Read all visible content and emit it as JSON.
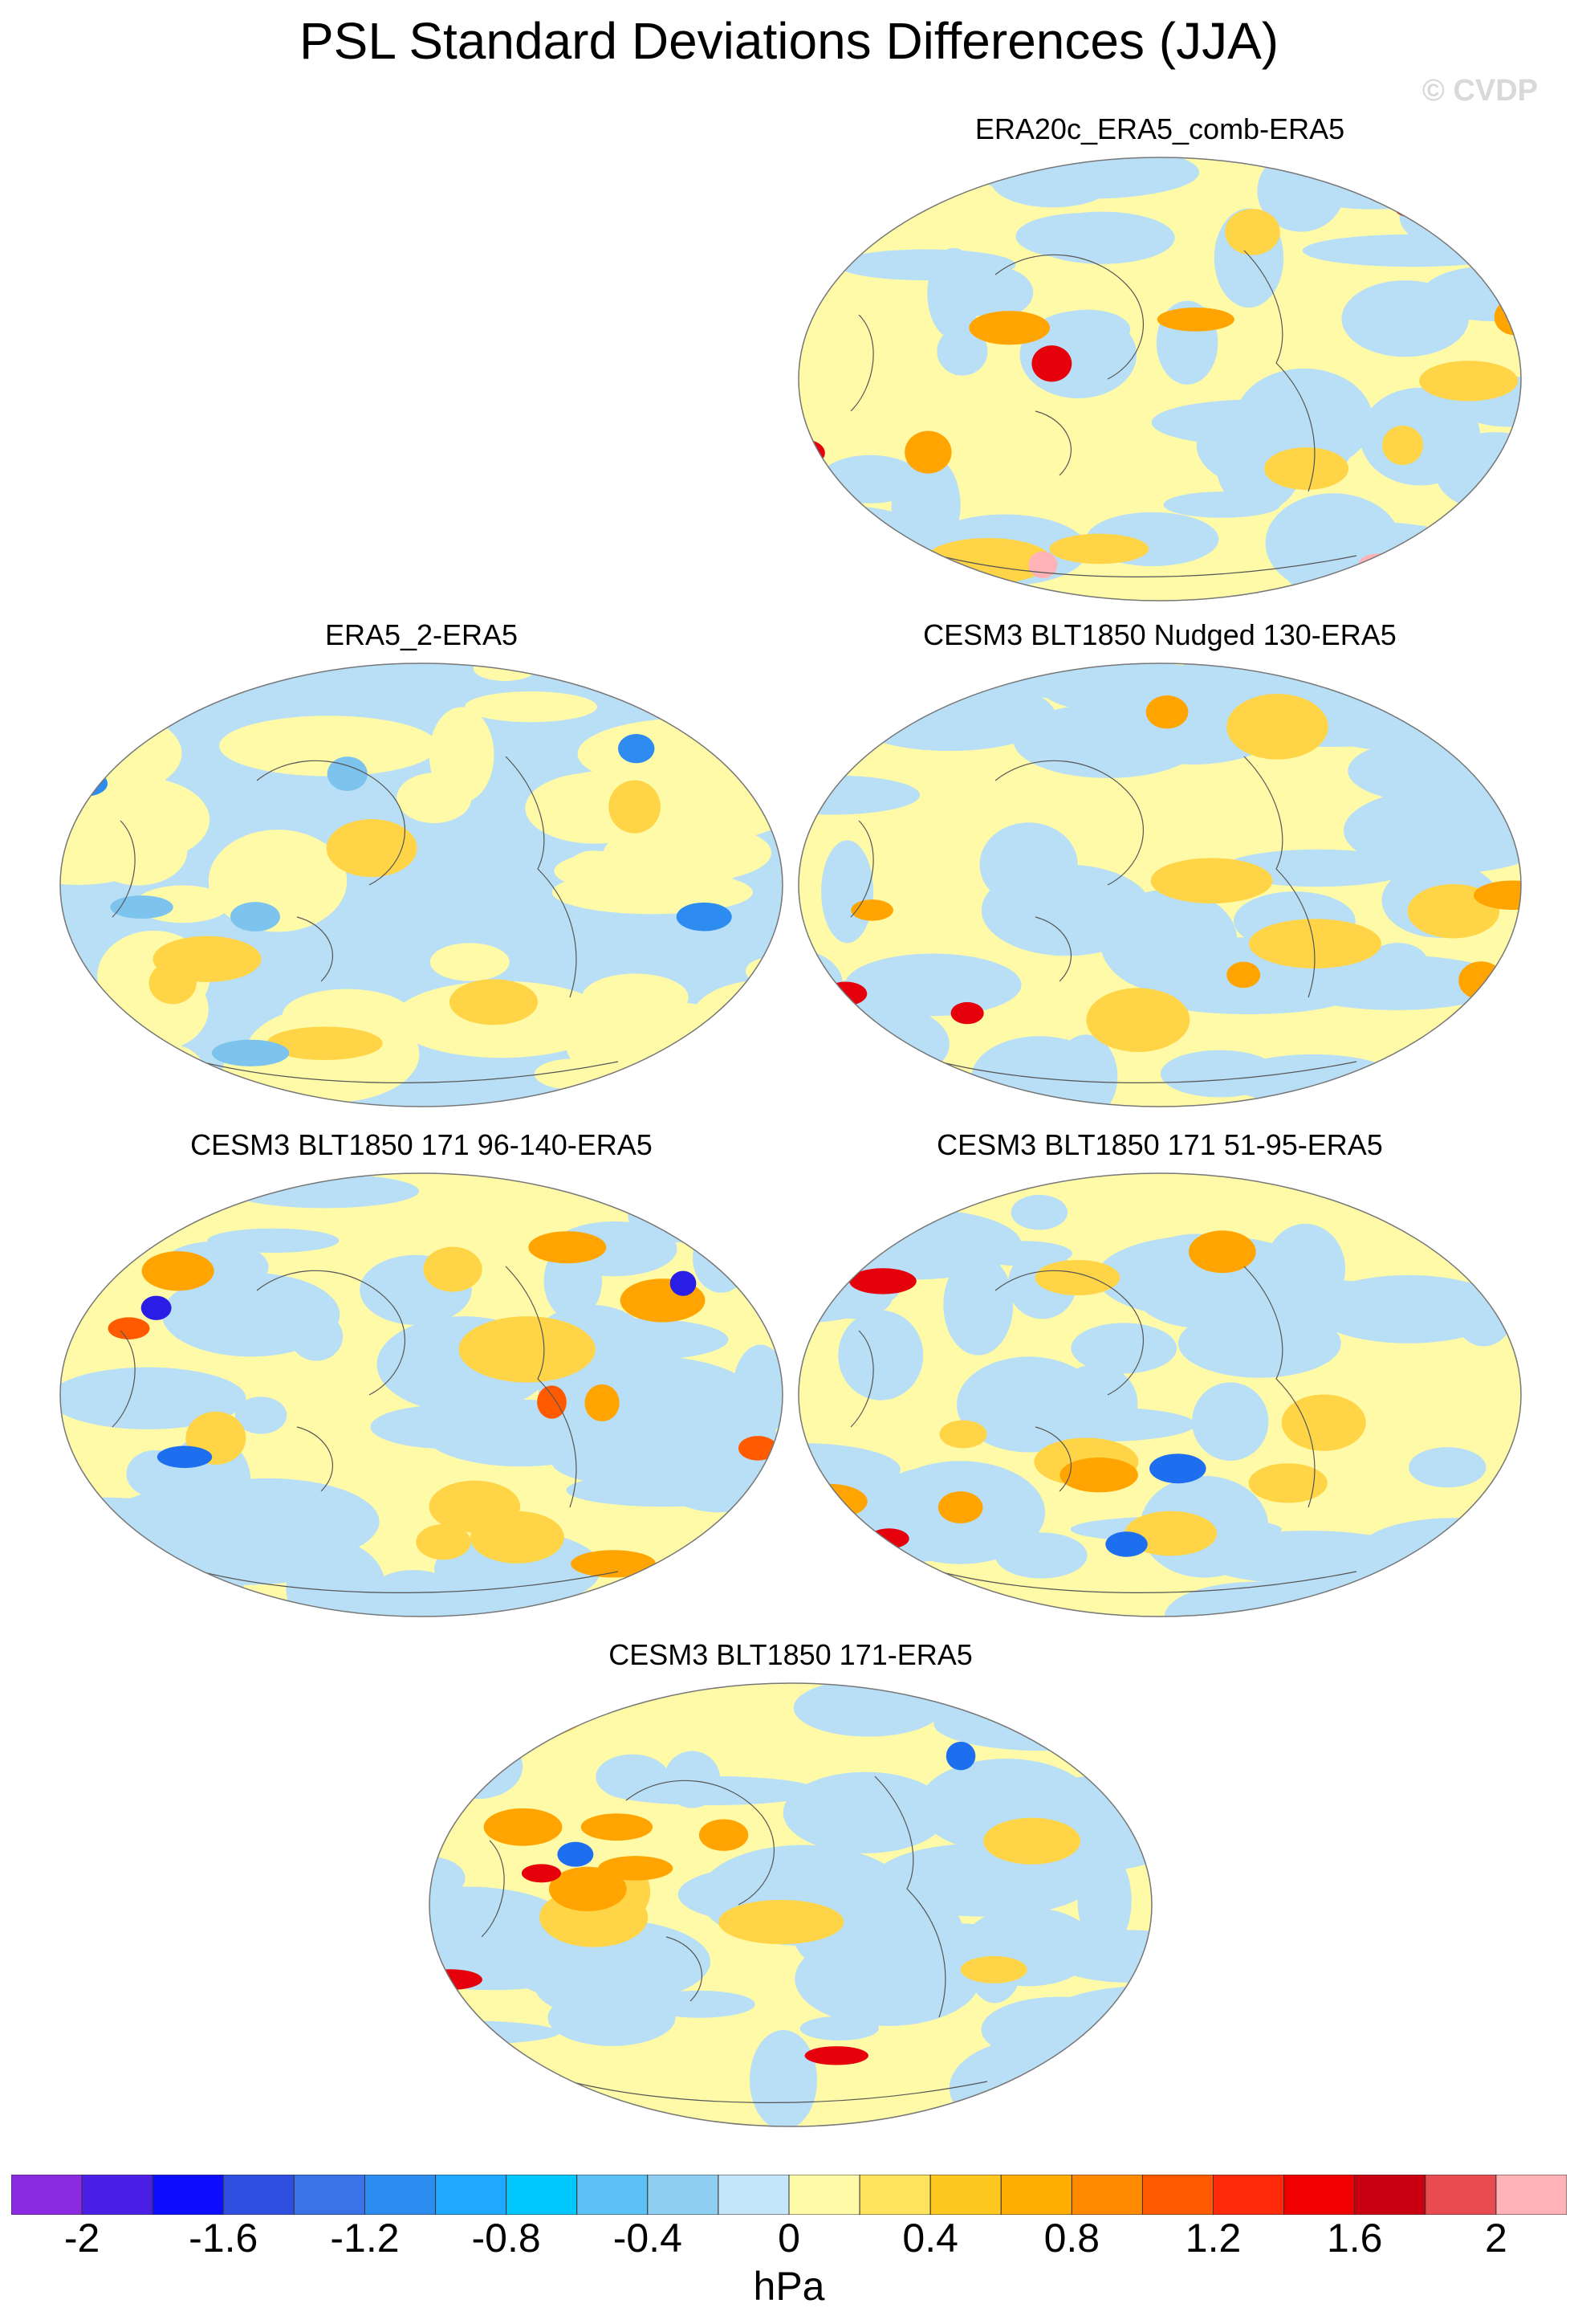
{
  "figure": {
    "title": "PSL Standard Deviations Differences (JJA)",
    "watermark": "© CVDP"
  },
  "panels": [
    {
      "id": "p1",
      "title": "ERA20c_ERA5_comb-ERA5",
      "palette": [
        "#fffaa8",
        "#b8dff5",
        "#ffd447",
        "#ffa400",
        "#e5000b",
        "#ffb3b7"
      ]
    },
    {
      "id": "p2",
      "title": "ERA5_2-ERA5",
      "palette": [
        "#b8dff5",
        "#fffaa8",
        "#ffd447",
        "#7cc3ee",
        "#2e8bf0"
      ]
    },
    {
      "id": "p3",
      "title": "CESM3 BLT1850 Nudged 130-ERA5",
      "palette": [
        "#fffaa8",
        "#b8dff5",
        "#ffd447",
        "#ffa400",
        "#e5000b"
      ]
    },
    {
      "id": "p4",
      "title": "CESM3 BLT1850 171 96-140-ERA5",
      "palette": [
        "#fffaa8",
        "#b8dff5",
        "#ffd447",
        "#ffa400",
        "#ff5a00",
        "#1e6ff0",
        "#2a1de5"
      ]
    },
    {
      "id": "p5",
      "title": "CESM3 BLT1850 171 51-95-ERA5",
      "palette": [
        "#fffaa8",
        "#b8dff5",
        "#ffd447",
        "#ffa400",
        "#e5000b",
        "#1e6ff0"
      ]
    },
    {
      "id": "p6",
      "title": "CESM3 BLT1850 171-ERA5",
      "palette": [
        "#fffaa8",
        "#b8dff5",
        "#ffd447",
        "#ffa400",
        "#e5000b",
        "#1e6ff0"
      ]
    }
  ],
  "colorbar": {
    "units": "hPa",
    "colors": [
      "#8a2be2",
      "#4b1fe6",
      "#0d0dff",
      "#2f4fe0",
      "#3a72e8",
      "#2d8cf0",
      "#1ea8ff",
      "#00c8ff",
      "#5cc2f5",
      "#8fcff2",
      "#c4e6fa",
      "#fffaa8",
      "#ffe35c",
      "#ffc820",
      "#ffad00",
      "#ff8a00",
      "#ff5a00",
      "#ff2a0a",
      "#f00000",
      "#c90012",
      "#e84b50",
      "#ffb3b7"
    ],
    "tick_labels": [
      "-2",
      "-1.6",
      "-1.2",
      "-0.8",
      "-0.4",
      "0",
      "0.4",
      "0.8",
      "1.2",
      "1.6",
      "2"
    ]
  }
}
